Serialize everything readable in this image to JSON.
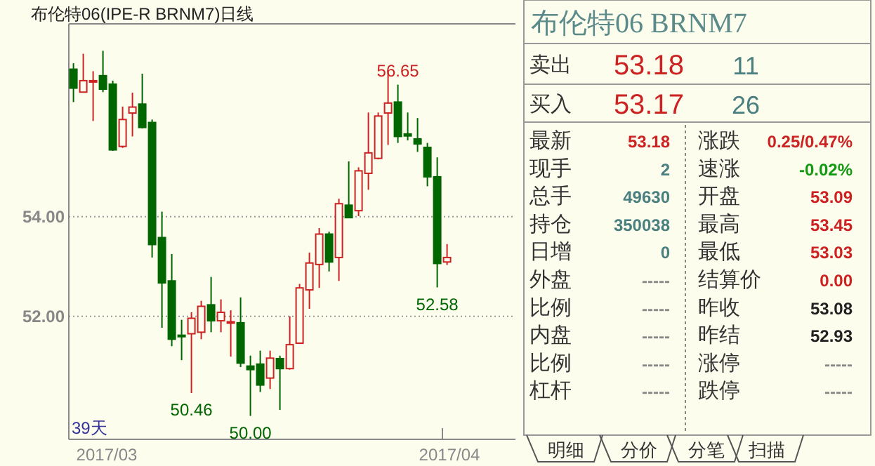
{
  "chart_data": [
    {
      "type": "candlestick",
      "title": "布伦特06(IPE-R BRNM7)日线",
      "categories": [
        null,
        null,
        null,
        null,
        null,
        null,
        null,
        null,
        null,
        null,
        null,
        null,
        null,
        null,
        null,
        null,
        null,
        null,
        null,
        null,
        null,
        null,
        null,
        null,
        null,
        null,
        null,
        null,
        null,
        null,
        null,
        null,
        null,
        null,
        null,
        null,
        null,
        null,
        null
      ],
      "ohlc": [
        [
          56.96,
          57.08,
          56.3,
          56.58
        ],
        [
          56.5,
          57.27,
          56.5,
          56.73
        ],
        [
          56.72,
          56.92,
          55.92,
          56.73
        ],
        [
          56.83,
          57.33,
          56.5,
          56.56
        ],
        [
          56.66,
          56.73,
          55.32,
          55.34
        ],
        [
          55.41,
          56.21,
          55.38,
          55.95
        ],
        [
          56.08,
          56.49,
          55.61,
          56.2
        ],
        [
          56.26,
          56.87,
          55.77,
          55.79
        ],
        [
          55.89,
          55.95,
          53.18,
          53.44
        ],
        [
          53.58,
          54.1,
          51.77,
          52.67
        ],
        [
          52.71,
          53.25,
          51.4,
          51.54
        ],
        [
          51.62,
          51.93,
          51.12,
          51.59
        ],
        [
          51.65,
          52.08,
          50.46,
          51.96
        ],
        [
          51.68,
          52.31,
          51.54,
          52.2
        ],
        [
          52.23,
          52.79,
          51.68,
          51.91
        ],
        [
          51.91,
          52.34,
          51.68,
          52.08
        ],
        [
          51.87,
          52.12,
          51.19,
          51.89
        ],
        [
          51.87,
          52.38,
          50.98,
          51.06
        ],
        [
          51.0,
          51.21,
          50.0,
          50.93
        ],
        [
          51.04,
          51.31,
          50.48,
          50.62
        ],
        [
          50.76,
          51.31,
          50.54,
          51.16
        ],
        [
          51.15,
          51.21,
          50.12,
          50.95
        ],
        [
          50.95,
          52.0,
          50.93,
          51.43
        ],
        [
          51.46,
          52.65,
          51.45,
          52.57
        ],
        [
          52.53,
          53.28,
          52.15,
          53.07
        ],
        [
          53.04,
          53.77,
          52.57,
          53.65
        ],
        [
          53.65,
          53.7,
          52.9,
          53.09
        ],
        [
          53.18,
          54.36,
          52.71,
          54.26
        ],
        [
          54.23,
          55.11,
          53.97,
          53.98
        ],
        [
          54.12,
          54.99,
          54.01,
          54.92
        ],
        [
          54.87,
          56.09,
          54.54,
          55.28
        ],
        [
          55.17,
          56.09,
          55.15,
          56.02
        ],
        [
          56.08,
          56.94,
          55.44,
          56.28
        ],
        [
          56.3,
          56.65,
          55.48,
          55.61
        ],
        [
          55.66,
          56.09,
          55.53,
          55.62
        ],
        [
          55.56,
          55.98,
          55.3,
          55.46
        ],
        [
          55.39,
          55.48,
          54.61,
          54.8
        ],
        [
          54.8,
          55.19,
          52.58,
          53.06
        ],
        [
          53.09,
          53.45,
          53.03,
          53.18
        ]
      ],
      "colors": [
        "#006600",
        "#cc2222",
        "#cc2222",
        "#006600",
        "#006600",
        "#cc2222",
        "#cc2222",
        "#006600",
        "#006600",
        "#006600",
        "#006600",
        "#006600",
        "#cc2222",
        "#cc2222",
        "#006600",
        "#cc2222",
        "#cc2222",
        "#006600",
        "#006600",
        "#006600",
        "#cc2222",
        "#006600",
        "#cc2222",
        "#cc2222",
        "#cc2222",
        "#cc2222",
        "#006600",
        "#cc2222",
        "#006600",
        "#cc2222",
        "#cc2222",
        "#cc2222",
        "#cc2222",
        "#006600",
        "#006600",
        "#006600",
        "#006600",
        "#006600",
        "#cc2222"
      ],
      "ylim": [
        49.53,
        57.87
      ],
      "yticks": [
        {
          "value": 52,
          "label": "52.00"
        },
        {
          "value": 54,
          "label": "54.00"
        }
      ],
      "grid": "y",
      "annotations": [
        "39天",
        "2017/03",
        "2017/04",
        {
          "text": "56.65",
          "y": 56.65
        },
        {
          "text": "52.58",
          "y": 52.58
        },
        {
          "text": "50.46",
          "y": 50.46
        },
        {
          "text": "50.00",
          "y": 50.0
        }
      ]
    },
    {
      "type": "other",
      "title": "布伦特06  BRNM7",
      "annotations": [
        "卖出",
        "53.18",
        "11",
        "买入",
        "53.17",
        "26",
        "最新",
        "53.18",
        "涨跌",
        "0.25/0.47%",
        "现手",
        "2",
        "速涨",
        "-0.02%",
        "总手",
        "49630",
        "开盘",
        "53.09",
        "持仓",
        "350038",
        "最高",
        "53.45",
        "日增",
        "0",
        "最低",
        "53.03",
        "外盘",
        "-----",
        "结算价",
        "0.00",
        "比例",
        "-----",
        "昨收",
        "53.08",
        "内盘",
        "-----",
        "昨结",
        "52.93",
        "比例",
        "-----",
        "涨停",
        "-----",
        "杠杆",
        "-----",
        "跌停",
        "-----",
        "明细",
        "分价",
        "分笔",
        "扫描"
      ],
      "colors": [
        "#333333",
        "#cc2222",
        "#4a7f80",
        "#333333",
        "#cc2222",
        "#4a7f80",
        "#333333",
        "#cc2222",
        "#333333",
        "#cc2222",
        "#333333",
        "#4a7f80",
        "#333333",
        "#119911",
        "#333333",
        "#4a7f80",
        "#333333",
        "#cc2222",
        "#333333",
        "#4a7f80",
        "#333333",
        "#cc2222",
        "#333333",
        "#4a7f80",
        "#333333",
        "#cc2222",
        "#333333",
        "#888888",
        "#333333",
        "#cc2222",
        "#333333",
        "#888888",
        "#333333",
        "#222222",
        "#333333",
        "#888888",
        "#333333",
        "#222222",
        "#333333",
        "#888888",
        "#333333",
        "#888888",
        "#333333",
        "#888888",
        "#333333",
        "#888888",
        "#333333",
        "#333333",
        "#333333",
        "#333333"
      ]
    }
  ]
}
